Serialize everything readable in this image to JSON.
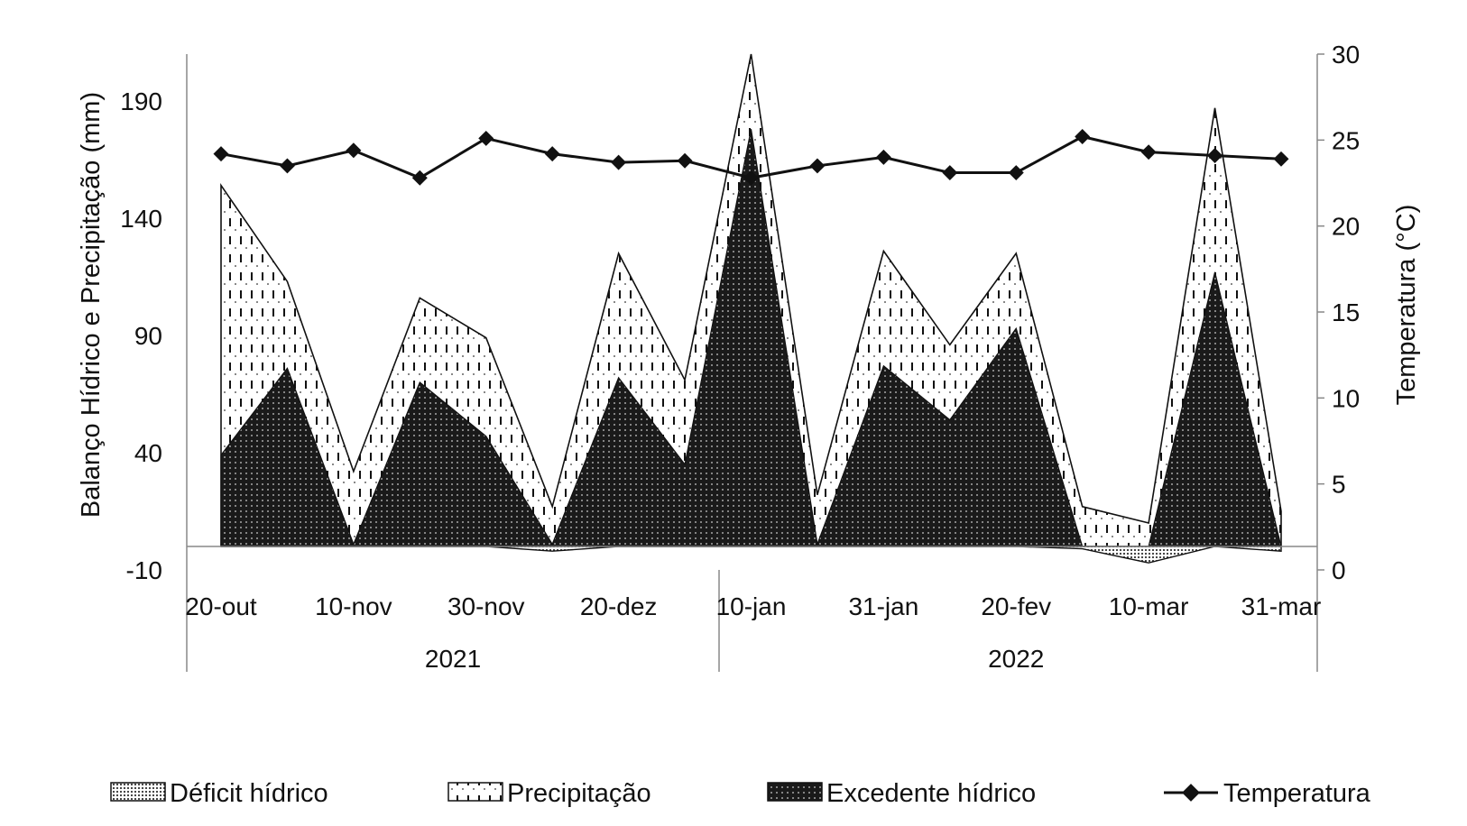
{
  "chart_data": {
    "type": "area",
    "title": "",
    "ylabel": "Balanço Hídrico e Precipitação (mm)",
    "y2label": "Temperatura (°C)",
    "ylim": [
      -10,
      210
    ],
    "y2lim": [
      0,
      30
    ],
    "yticks": [
      -10,
      40,
      90,
      140,
      190
    ],
    "y2ticks": [
      0,
      5,
      10,
      15,
      20,
      25,
      30
    ],
    "x_tick_labels": [
      "20-out",
      "10-nov",
      "30-nov",
      "20-dez",
      "10-jan",
      "31-jan",
      "20-fev",
      "10-mar",
      "31-mar"
    ],
    "x_tick_index": [
      0,
      2,
      4,
      6,
      8,
      10,
      12,
      14,
      16
    ],
    "year_groups": [
      {
        "label": "2021",
        "start": 0,
        "end": 7
      },
      {
        "label": "2022",
        "start": 8,
        "end": 16
      }
    ],
    "series": [
      {
        "name": "Déficit hídrico",
        "type": "area",
        "values": [
          0,
          0,
          0,
          0,
          0,
          -2,
          0,
          0,
          0,
          0,
          0,
          0,
          0,
          -1,
          -7,
          0,
          -2
        ]
      },
      {
        "name": "Precipitação",
        "type": "area",
        "values": [
          154,
          113,
          32,
          106,
          89,
          17,
          125,
          71,
          210,
          22,
          126,
          86,
          125,
          17,
          10,
          187,
          15
        ]
      },
      {
        "name": "Excedente hídrico",
        "type": "area",
        "values": [
          39,
          76,
          1,
          70,
          47,
          1,
          72,
          35,
          178,
          1,
          77,
          54,
          93,
          0,
          0,
          117,
          0
        ]
      },
      {
        "name": "Temperatura",
        "type": "line",
        "axis": "right",
        "values": [
          24.2,
          23.5,
          24.4,
          22.8,
          25.1,
          24.2,
          23.7,
          23.8,
          22.8,
          23.5,
          24.0,
          23.1,
          23.1,
          25.2,
          24.3,
          24.1,
          23.9
        ]
      }
    ],
    "legend": {
      "placement": "bottom",
      "entries": [
        "Déficit hídrico",
        "Precipitação",
        "Excedente hídrico",
        "Temperatura"
      ]
    },
    "grid": false
  }
}
